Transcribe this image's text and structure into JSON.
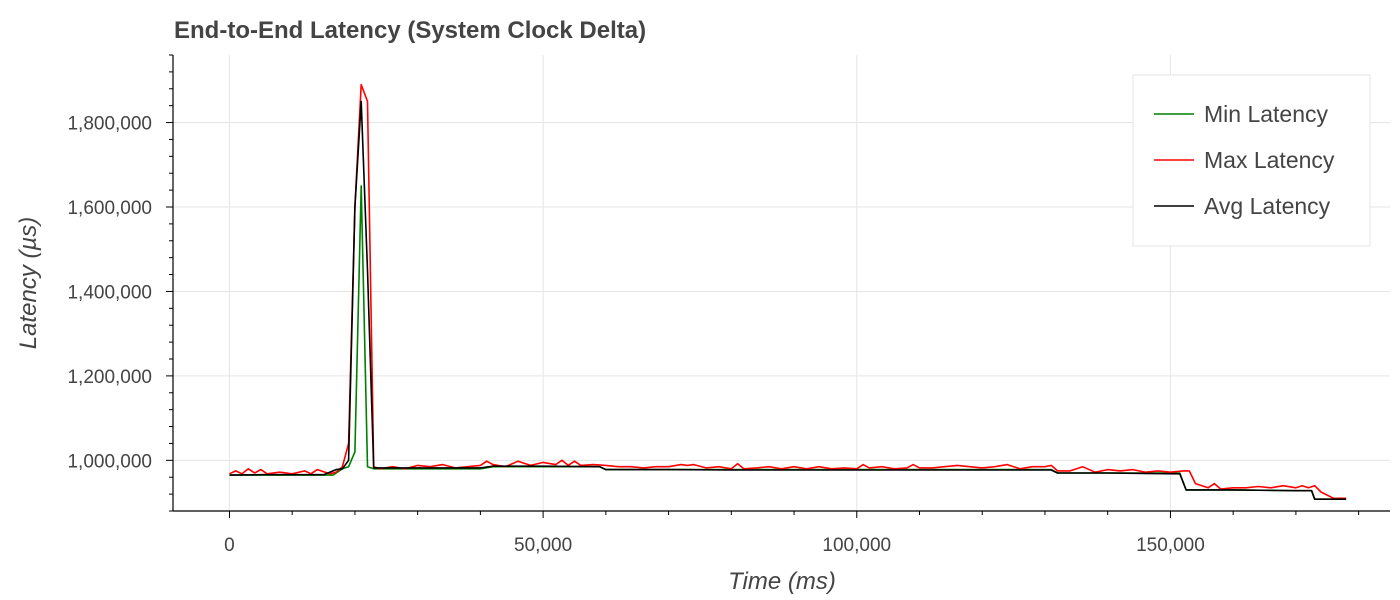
{
  "chart_data": {
    "type": "line",
    "title": "End-to-End Latency (System Clock Delta)",
    "xlabel": "Time (ms)",
    "ylabel": "Latency (µs)",
    "xlim": [
      -9000,
      185000
    ],
    "ylim": [
      880000,
      1960000
    ],
    "x_ticks": [
      0,
      50000,
      100000,
      150000
    ],
    "x_tick_labels": [
      "0",
      "50,000",
      "100,000",
      "150,000"
    ],
    "y_ticks": [
      1000000,
      1200000,
      1400000,
      1600000,
      1800000
    ],
    "y_tick_labels": [
      "1,000,000",
      "1,200,000",
      "1,400,000",
      "1,600,000",
      "1,800,000"
    ],
    "grid": true,
    "legend_position": "top-right",
    "series": [
      {
        "name": "Min Latency",
        "color": "#008000",
        "x": [
          0,
          5000,
          10000,
          15000,
          16500,
          18000,
          19000,
          20000,
          21000,
          22000,
          23000,
          30000,
          40000,
          42000,
          50000,
          59000,
          60000,
          70000,
          80000,
          90000,
          100000,
          110000,
          120000,
          131000,
          132000,
          140000,
          151500,
          152500,
          160000,
          170000,
          172500,
          173000,
          178000
        ],
        "y": [
          965000,
          965000,
          965000,
          965000,
          965000,
          980000,
          985000,
          1020000,
          1650000,
          985000,
          980000,
          980000,
          980000,
          985000,
          985000,
          985000,
          978000,
          978000,
          978000,
          978000,
          978000,
          978000,
          978000,
          978000,
          970000,
          970000,
          970000,
          930000,
          930000,
          928000,
          928000,
          908000,
          908000
        ]
      },
      {
        "name": "Max Latency",
        "color": "#ff0000",
        "x": [
          0,
          1000,
          2000,
          3000,
          4000,
          5000,
          6000,
          8000,
          10000,
          12000,
          13000,
          14000,
          16000,
          17000,
          18000,
          19000,
          20000,
          21000,
          22000,
          23000,
          24000,
          26000,
          28000,
          30000,
          32000,
          34000,
          36000,
          38000,
          40000,
          41000,
          42000,
          44000,
          46000,
          48000,
          50000,
          52000,
          53000,
          54000,
          55000,
          56000,
          58000,
          60000,
          62000,
          64000,
          66000,
          68000,
          70000,
          72000,
          73000,
          74000,
          76000,
          78000,
          80000,
          81000,
          82000,
          84000,
          86000,
          88000,
          90000,
          92000,
          94000,
          96000,
          98000,
          100000,
          101000,
          102000,
          104000,
          106000,
          108000,
          109000,
          110000,
          112000,
          114000,
          116000,
          118000,
          120000,
          122000,
          124000,
          126000,
          128000,
          130000,
          131000,
          132000,
          134000,
          136000,
          138000,
          140000,
          142000,
          144000,
          146000,
          148000,
          150000,
          152000,
          153000,
          154000,
          156000,
          157000,
          158000,
          160000,
          162000,
          164000,
          166000,
          168000,
          170000,
          171000,
          172000,
          173000,
          174000,
          176000,
          178000
        ],
        "y": [
          968000,
          975000,
          968000,
          980000,
          970000,
          978000,
          968000,
          972000,
          968000,
          975000,
          968000,
          978000,
          968000,
          972000,
          985000,
          1040000,
          1600000,
          1890000,
          1850000,
          985000,
          980000,
          985000,
          980000,
          988000,
          985000,
          990000,
          982000,
          985000,
          988000,
          998000,
          990000,
          985000,
          998000,
          988000,
          995000,
          990000,
          1000000,
          988000,
          998000,
          988000,
          990000,
          988000,
          985000,
          985000,
          982000,
          985000,
          985000,
          990000,
          988000,
          990000,
          982000,
          985000,
          980000,
          992000,
          980000,
          982000,
          985000,
          980000,
          985000,
          980000,
          985000,
          980000,
          982000,
          980000,
          990000,
          982000,
          985000,
          980000,
          982000,
          990000,
          982000,
          982000,
          985000,
          988000,
          985000,
          982000,
          985000,
          990000,
          980000,
          985000,
          985000,
          988000,
          975000,
          975000,
          985000,
          972000,
          978000,
          975000,
          978000,
          972000,
          975000,
          972000,
          975000,
          975000,
          945000,
          935000,
          945000,
          932000,
          935000,
          935000,
          938000,
          935000,
          940000,
          935000,
          940000,
          935000,
          940000,
          925000,
          910000,
          910000
        ]
      },
      {
        "name": "Avg Latency",
        "color": "#000000",
        "x": [
          0,
          5000,
          10000,
          15000,
          17000,
          18000,
          19000,
          20000,
          21000,
          22000,
          23000,
          30000,
          40000,
          42000,
          50000,
          59000,
          60000,
          70000,
          80000,
          90000,
          100000,
          110000,
          120000,
          131000,
          132000,
          140000,
          151500,
          152500,
          160000,
          170000,
          172500,
          173000,
          178000
        ],
        "y": [
          965000,
          966000,
          966000,
          966000,
          978000,
          980000,
          1000000,
          1600000,
          1850000,
          1450000,
          982000,
          982000,
          982000,
          986000,
          986000,
          985000,
          978000,
          978000,
          977000,
          977000,
          977000,
          977000,
          977000,
          977000,
          970000,
          970000,
          968000,
          930000,
          930000,
          928000,
          928000,
          908000,
          908000
        ]
      }
    ]
  }
}
